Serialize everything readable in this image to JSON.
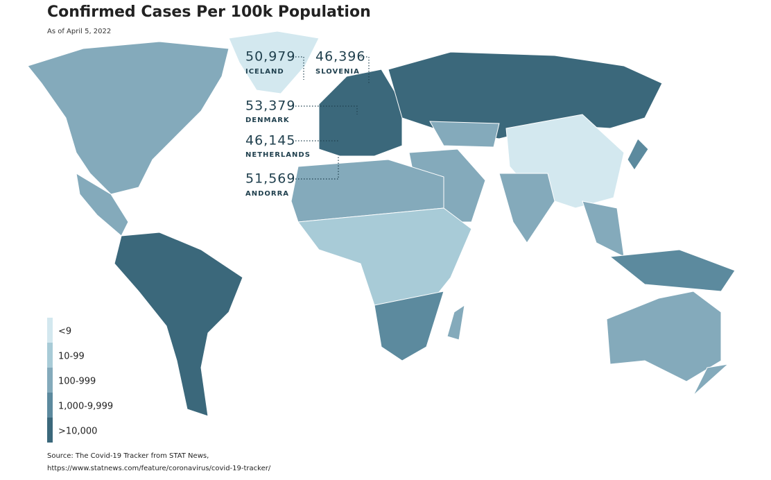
{
  "header": {
    "title": "Confirmed Cases Per 100k Population",
    "subtitle": "As of April 5, 2022"
  },
  "callouts": [
    {
      "value": "50,979",
      "country": "ICELAND"
    },
    {
      "value": "46,396",
      "country": "SLOVENIA"
    },
    {
      "value": "53,379",
      "country": "DENMARK"
    },
    {
      "value": "46,145",
      "country": "NETHERLANDS"
    },
    {
      "value": "51,569",
      "country": "ANDORRA"
    }
  ],
  "legend": {
    "items": [
      {
        "label": "<9",
        "color": "#d3e8ef"
      },
      {
        "label": "10-99",
        "color": "#a8cbd7"
      },
      {
        "label": "100-999",
        "color": "#84aabb"
      },
      {
        "label": "1,000-9,999",
        "color": "#5c8a9e"
      },
      {
        "label": ">10,000",
        "color": "#3b687b"
      }
    ]
  },
  "footer": {
    "source": "Source: The Covid-19 Tracker from STAT News,",
    "url": "https://www.statnews.com/feature/coronavirus/covid-19-tracker/"
  }
}
